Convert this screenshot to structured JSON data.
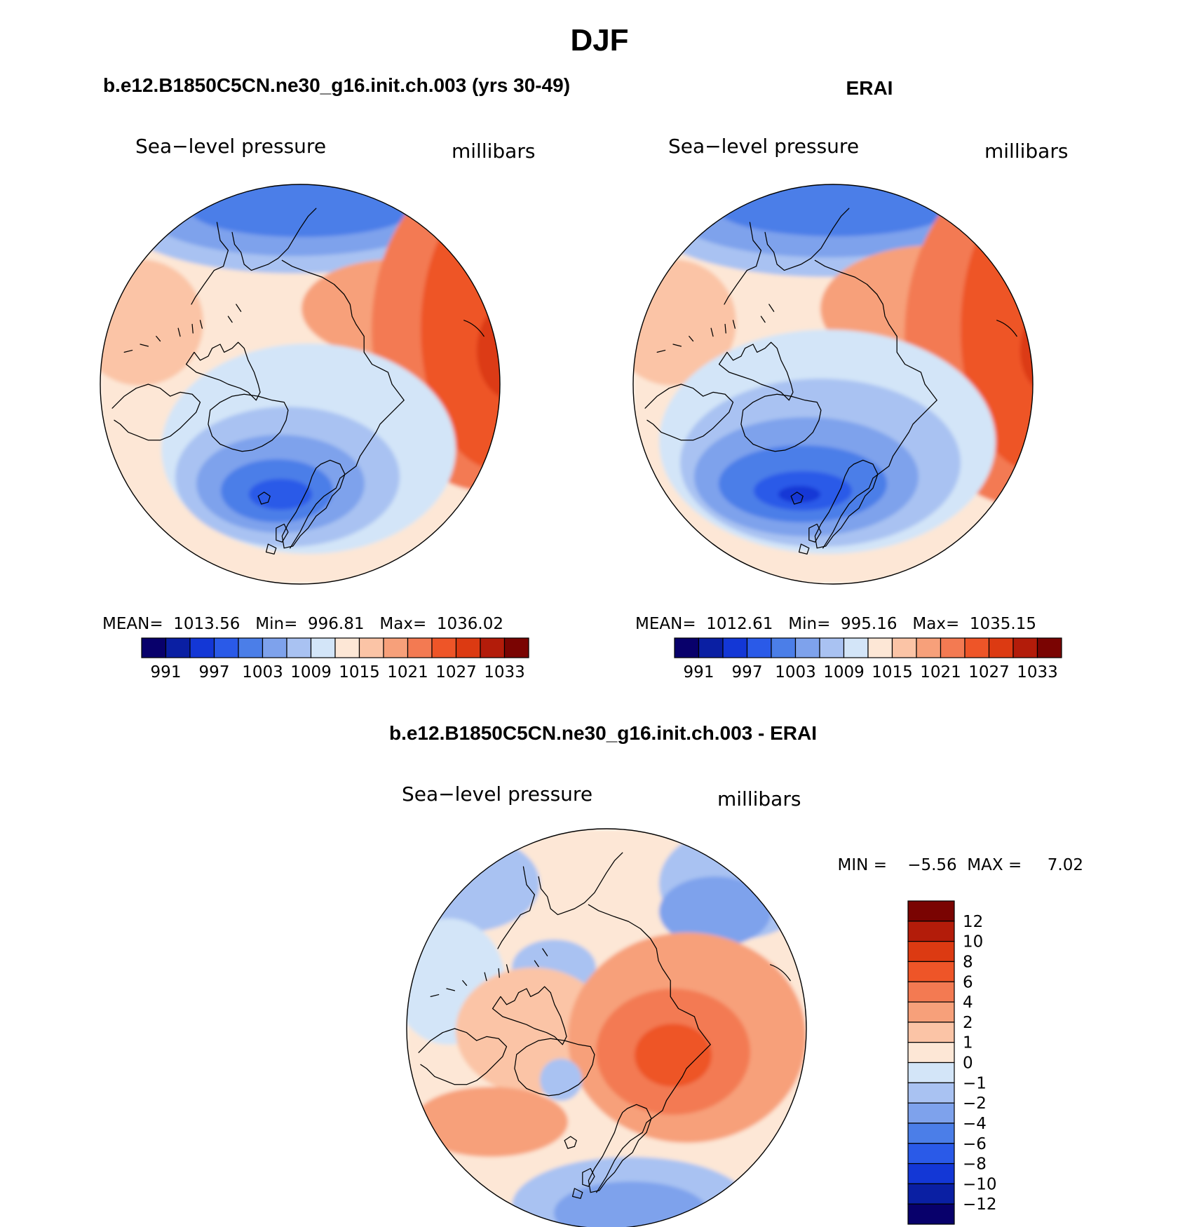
{
  "figure_title": "DJF",
  "panels": [
    {
      "id": "model",
      "header": "b.e12.B1850C5CN.ne30_g16.init.ch.003 (yrs 30-49)",
      "left_label": "Sea−level pressure",
      "right_label": "millibars",
      "stats": "MEAN=  1013.56   Min=  996.81   Max=  1036.02"
    },
    {
      "id": "obs",
      "header": "ERAI",
      "left_label": "Sea−level pressure",
      "right_label": "millibars",
      "stats": "MEAN=  1012.61   Min=  995.16   Max=  1035.15"
    },
    {
      "id": "diff",
      "header": "b.e12.B1850C5CN.ne30_g16.init.ch.003 - ERAI",
      "left_label": "Sea−level pressure",
      "right_label": "millibars",
      "stats": "MIN =    −5.56  MAX =     7.02"
    }
  ],
  "chart_data": [
    {
      "type": "heatmap",
      "projection": "north-polar-stereographic",
      "title": "b.e12.B1850C5CN.ne30_g16.init.ch.003 (yrs 30-49)",
      "variable": "Sea−level pressure",
      "units": "millibars",
      "mean": 1013.56,
      "min": 996.81,
      "max": 1036.02,
      "colorbar_ticks": [
        "991",
        "997",
        "1003",
        "1009",
        "1015",
        "1021",
        "1027",
        "1033"
      ],
      "colorbar_colors": [
        "#08006b",
        "#0a1fa3",
        "#1337d6",
        "#2a5ae8",
        "#4b7ee8",
        "#7ea2ec",
        "#a9c2f2",
        "#d3e5f8",
        "#fde7d6",
        "#fbc4a6",
        "#f7a07a",
        "#f37a52",
        "#ee5528",
        "#dc3a12",
        "#b31c0a",
        "#7a0402"
      ]
    },
    {
      "type": "heatmap",
      "projection": "north-polar-stereographic",
      "title": "ERAI",
      "variable": "Sea−level pressure",
      "units": "millibars",
      "mean": 1012.61,
      "min": 995.16,
      "max": 1035.15,
      "colorbar_ticks": [
        "991",
        "997",
        "1003",
        "1009",
        "1015",
        "1021",
        "1027",
        "1033"
      ],
      "colorbar_colors": [
        "#08006b",
        "#0a1fa3",
        "#1337d6",
        "#2a5ae8",
        "#4b7ee8",
        "#7ea2ec",
        "#a9c2f2",
        "#d3e5f8",
        "#fde7d6",
        "#fbc4a6",
        "#f7a07a",
        "#f37a52",
        "#ee5528",
        "#dc3a12",
        "#b31c0a",
        "#7a0402"
      ]
    },
    {
      "type": "heatmap",
      "projection": "north-polar-stereographic",
      "title": "b.e12.B1850C5CN.ne30_g16.init.ch.003 - ERAI",
      "variable": "Sea−level pressure",
      "units": "millibars",
      "min": -5.56,
      "max": 7.02,
      "colorbar_ticks": [
        "12",
        "10",
        "8",
        "6",
        "4",
        "2",
        "1",
        "0",
        "−1",
        "−2",
        "−4",
        "−6",
        "−8",
        "−10",
        "−12"
      ],
      "colorbar_colors": [
        "#7a0402",
        "#b31c0a",
        "#dc3a12",
        "#ee5528",
        "#f37a52",
        "#f7a07a",
        "#fbc4a6",
        "#fde7d6",
        "#d3e5f8",
        "#a9c2f2",
        "#7ea2ec",
        "#4b7ee8",
        "#2a5ae8",
        "#1337d6",
        "#0a1fa3",
        "#08006b"
      ]
    }
  ]
}
